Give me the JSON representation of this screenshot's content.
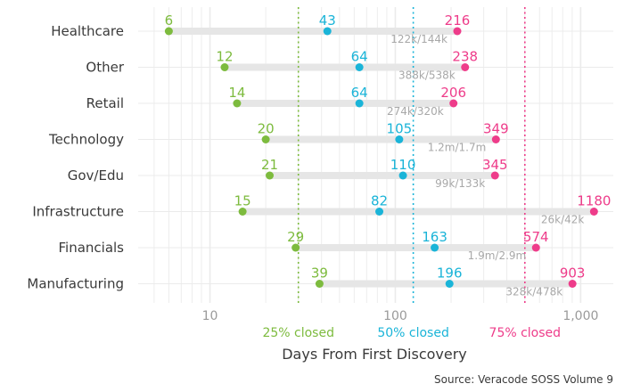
{
  "chart_data": {
    "type": "dumbbell",
    "xlabel": "Days From First Discovery",
    "source": "Source: Veracode SOSS Volume 9",
    "x_scale": "log",
    "xlim": [
      4.1,
      1500
    ],
    "ticks": [
      {
        "value": 10,
        "label": "10"
      },
      {
        "value": 100,
        "label": "100"
      },
      {
        "value": 1000,
        "label": "1,000"
      }
    ],
    "grid": true,
    "colors": {
      "p25": "#7dbb3e",
      "p50": "#1ab4d8",
      "p75": "#ee3c8a",
      "bar": "#e6e6e6",
      "grid": "#ebebeb"
    },
    "reference_lines": [
      {
        "key": "p25",
        "value": 30,
        "label": "25% closed"
      },
      {
        "key": "p50",
        "value": 125,
        "label": "50% closed"
      },
      {
        "key": "p75",
        "value": 500,
        "label": "75% closed"
      }
    ],
    "rows": [
      {
        "category": "Healthcare",
        "p25": 6,
        "p50": 43,
        "p75": 216,
        "ratio": "122k/144k"
      },
      {
        "category": "Other",
        "p25": 12,
        "p50": 64,
        "p75": 238,
        "ratio": "388k/538k"
      },
      {
        "category": "Retail",
        "p25": 14,
        "p50": 64,
        "p75": 206,
        "ratio": "274k/320k"
      },
      {
        "category": "Technology",
        "p25": 20,
        "p50": 105,
        "p75": 349,
        "ratio": "1.2m/1.7m"
      },
      {
        "category": "Gov/Edu",
        "p25": 21,
        "p50": 110,
        "p75": 345,
        "ratio": "99k/133k"
      },
      {
        "category": "Infrastructure",
        "p25": 15,
        "p50": 82,
        "p75": 1180,
        "ratio": "26k/42k"
      },
      {
        "category": "Financials",
        "p25": 29,
        "p50": 163,
        "p75": 574,
        "ratio": "1.9m/2.9m"
      },
      {
        "category": "Manufacturing",
        "p25": 39,
        "p50": 196,
        "p75": 903,
        "ratio": "328k/478k"
      }
    ]
  }
}
